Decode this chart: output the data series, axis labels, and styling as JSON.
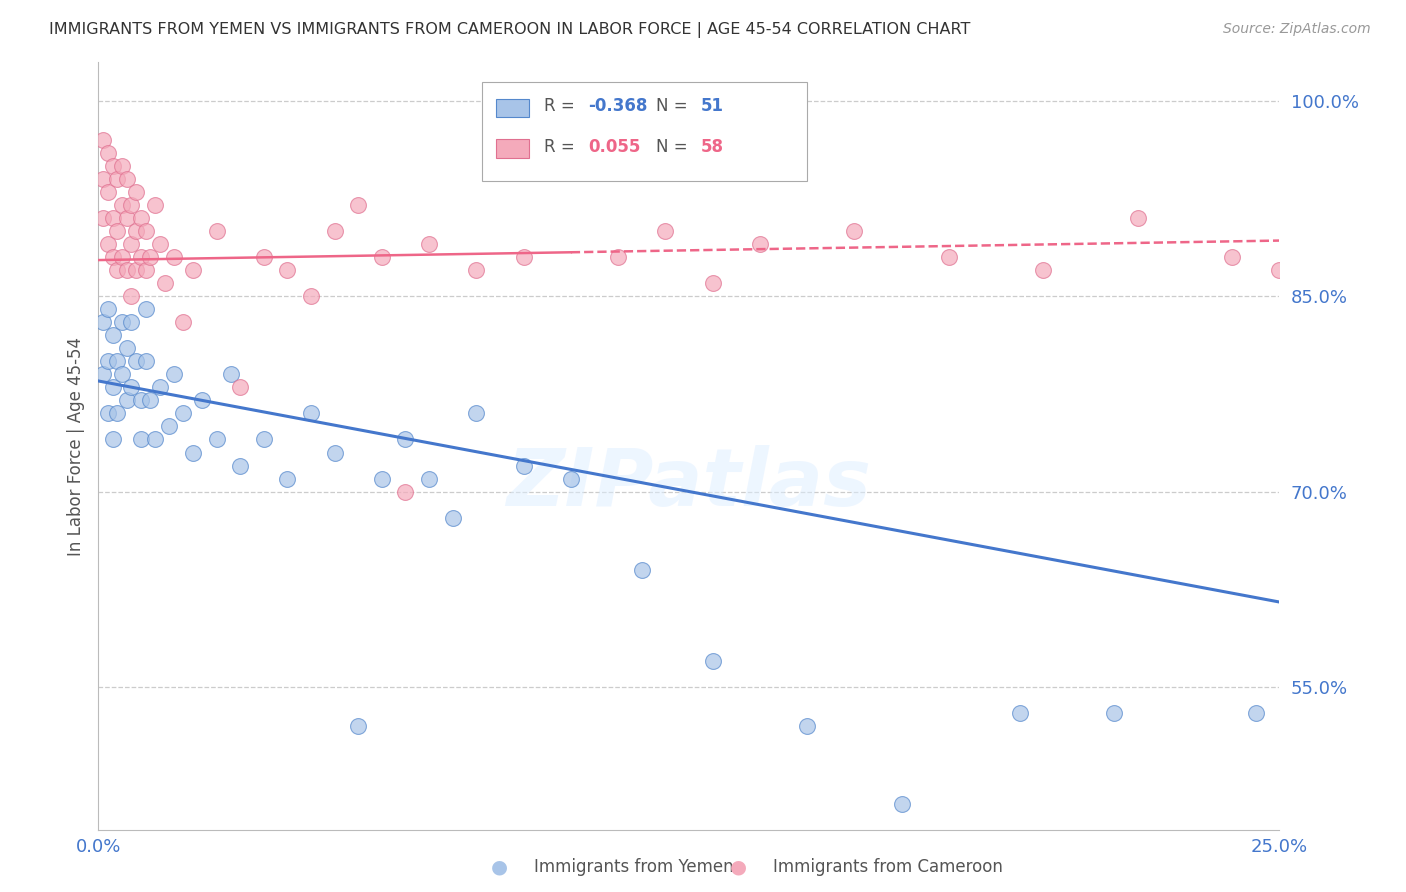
{
  "title": "IMMIGRANTS FROM YEMEN VS IMMIGRANTS FROM CAMEROON IN LABOR FORCE | AGE 45-54 CORRELATION CHART",
  "source": "Source: ZipAtlas.com",
  "ylabel": "In Labor Force | Age 45-54",
  "xlim": [
    0.0,
    0.25
  ],
  "ylim": [
    0.44,
    1.03
  ],
  "yticks": [
    0.55,
    0.7,
    0.85,
    1.0
  ],
  "xticks": [
    0.0,
    0.05,
    0.1,
    0.15,
    0.2,
    0.25
  ],
  "ytick_labels": [
    "55.0%",
    "70.0%",
    "85.0%",
    "100.0%"
  ],
  "xtick_labels": [
    "0.0%",
    "",
    "",
    "",
    "",
    "25.0%"
  ],
  "blue_fill": "#A8C4E8",
  "blue_edge": "#5588CC",
  "pink_fill": "#F4AABB",
  "pink_edge": "#E07090",
  "blue_line_color": "#4477CC",
  "pink_line_color": "#EE6688",
  "legend_R_blue": "-0.368",
  "legend_N_blue": "51",
  "legend_R_pink": "0.055",
  "legend_N_pink": "58",
  "legend_label_blue": "Immigrants from Yemen",
  "legend_label_pink": "Immigrants from Cameroon",
  "watermark": "ZIPatlas",
  "blue_trend_x0": 0.0,
  "blue_trend_y0": 0.785,
  "blue_trend_x1": 0.25,
  "blue_trend_y1": 0.615,
  "pink_trend_x0": 0.0,
  "pink_trend_y0": 0.878,
  "pink_trend_x1": 0.25,
  "pink_trend_y1": 0.893,
  "pink_trend_solid_x1": 0.1,
  "blue_scatter_x": [
    0.001,
    0.001,
    0.002,
    0.002,
    0.002,
    0.003,
    0.003,
    0.003,
    0.004,
    0.004,
    0.005,
    0.005,
    0.006,
    0.006,
    0.007,
    0.007,
    0.008,
    0.009,
    0.009,
    0.01,
    0.01,
    0.011,
    0.012,
    0.013,
    0.015,
    0.016,
    0.018,
    0.02,
    0.022,
    0.025,
    0.028,
    0.03,
    0.035,
    0.04,
    0.045,
    0.05,
    0.055,
    0.06,
    0.065,
    0.07,
    0.075,
    0.08,
    0.09,
    0.1,
    0.115,
    0.13,
    0.15,
    0.17,
    0.195,
    0.215,
    0.245
  ],
  "blue_scatter_y": [
    0.83,
    0.79,
    0.84,
    0.8,
    0.76,
    0.82,
    0.78,
    0.74,
    0.8,
    0.76,
    0.79,
    0.83,
    0.77,
    0.81,
    0.78,
    0.83,
    0.8,
    0.77,
    0.74,
    0.8,
    0.84,
    0.77,
    0.74,
    0.78,
    0.75,
    0.79,
    0.76,
    0.73,
    0.77,
    0.74,
    0.79,
    0.72,
    0.74,
    0.71,
    0.76,
    0.73,
    0.52,
    0.71,
    0.74,
    0.71,
    0.68,
    0.76,
    0.72,
    0.71,
    0.64,
    0.57,
    0.52,
    0.46,
    0.53,
    0.53,
    0.53
  ],
  "pink_scatter_x": [
    0.001,
    0.001,
    0.001,
    0.002,
    0.002,
    0.002,
    0.003,
    0.003,
    0.003,
    0.004,
    0.004,
    0.004,
    0.005,
    0.005,
    0.005,
    0.006,
    0.006,
    0.006,
    0.007,
    0.007,
    0.007,
    0.008,
    0.008,
    0.008,
    0.009,
    0.009,
    0.01,
    0.01,
    0.011,
    0.012,
    0.013,
    0.014,
    0.016,
    0.018,
    0.02,
    0.025,
    0.03,
    0.035,
    0.04,
    0.045,
    0.05,
    0.055,
    0.06,
    0.065,
    0.07,
    0.08,
    0.09,
    0.1,
    0.11,
    0.12,
    0.13,
    0.14,
    0.16,
    0.18,
    0.2,
    0.22,
    0.24,
    0.25
  ],
  "pink_scatter_y": [
    0.94,
    0.91,
    0.97,
    0.93,
    0.96,
    0.89,
    0.95,
    0.91,
    0.88,
    0.94,
    0.9,
    0.87,
    0.92,
    0.88,
    0.95,
    0.91,
    0.94,
    0.87,
    0.92,
    0.89,
    0.85,
    0.9,
    0.87,
    0.93,
    0.88,
    0.91,
    0.87,
    0.9,
    0.88,
    0.92,
    0.89,
    0.86,
    0.88,
    0.83,
    0.87,
    0.9,
    0.78,
    0.88,
    0.87,
    0.85,
    0.9,
    0.92,
    0.88,
    0.7,
    0.89,
    0.87,
    0.88,
    1.0,
    0.88,
    0.9,
    0.86,
    0.89,
    0.9,
    0.88,
    0.87,
    0.91,
    0.88,
    0.87
  ]
}
